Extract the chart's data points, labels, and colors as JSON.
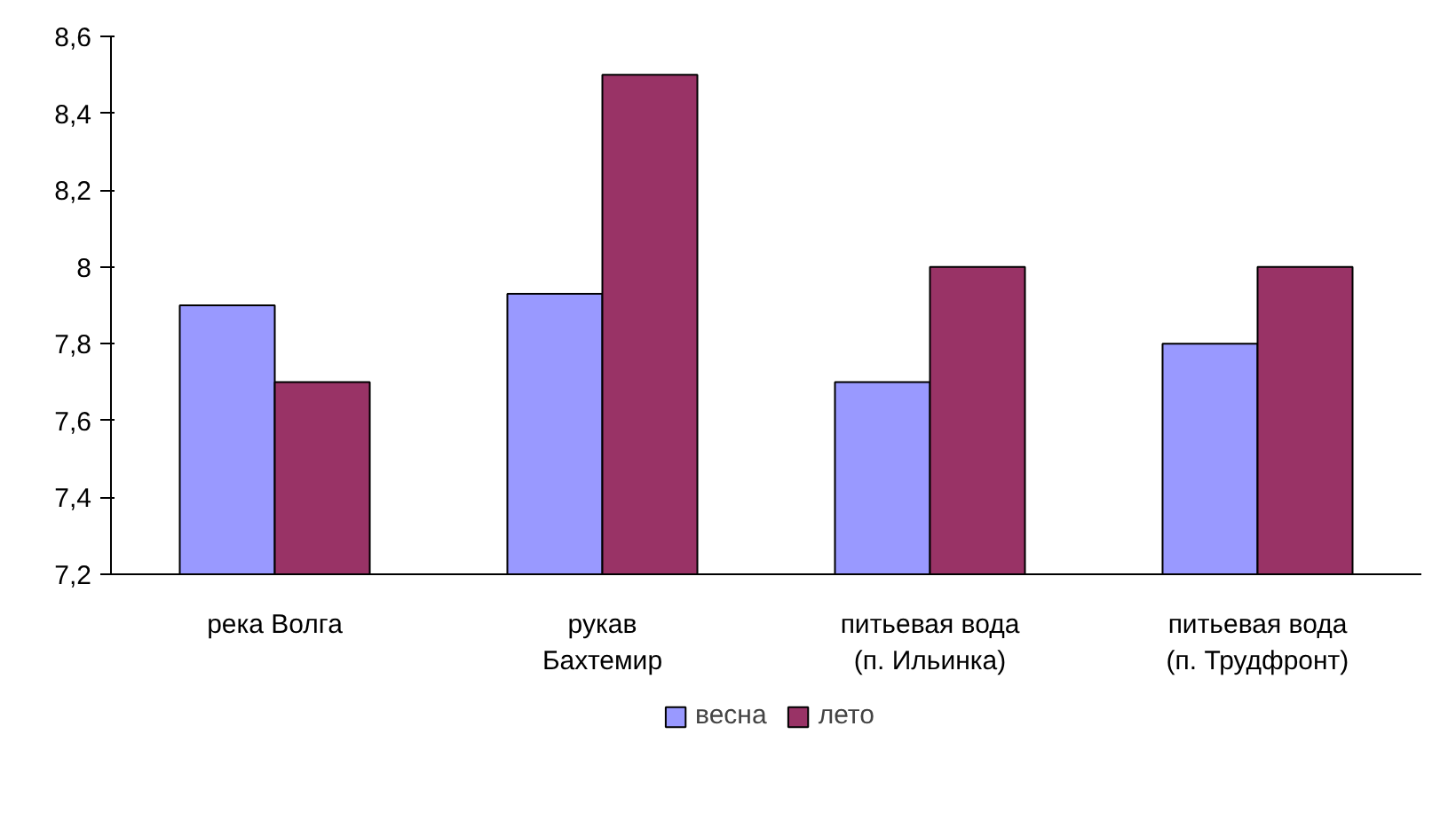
{
  "chart_data": {
    "type": "bar",
    "categories": [
      "река Волга",
      "рукав\nБахтемир",
      "питьевая вода\n(п. Ильинка)",
      "питьевая вода\n(п. Трудфронт)"
    ],
    "series": [
      {
        "name": "весна",
        "color": "#9999ff",
        "values": [
          7.9,
          7.93,
          7.7,
          7.8
        ]
      },
      {
        "name": "лето",
        "color": "#993366",
        "values": [
          7.7,
          8.5,
          8.0,
          8.0
        ]
      }
    ],
    "ylim": [
      7.2,
      8.6
    ],
    "yticks": [
      {
        "value": 7.2,
        "label": "7,2"
      },
      {
        "value": 7.4,
        "label": "7,4"
      },
      {
        "value": 7.6,
        "label": "7,6"
      },
      {
        "value": 7.8,
        "label": "7,8"
      },
      8,
      {
        "value": 8.2,
        "label": "8,2"
      },
      {
        "value": 8.4,
        "label": "8,4"
      },
      {
        "value": 8.6,
        "label": "8,6"
      }
    ],
    "grid": false,
    "legend": "bottom"
  }
}
